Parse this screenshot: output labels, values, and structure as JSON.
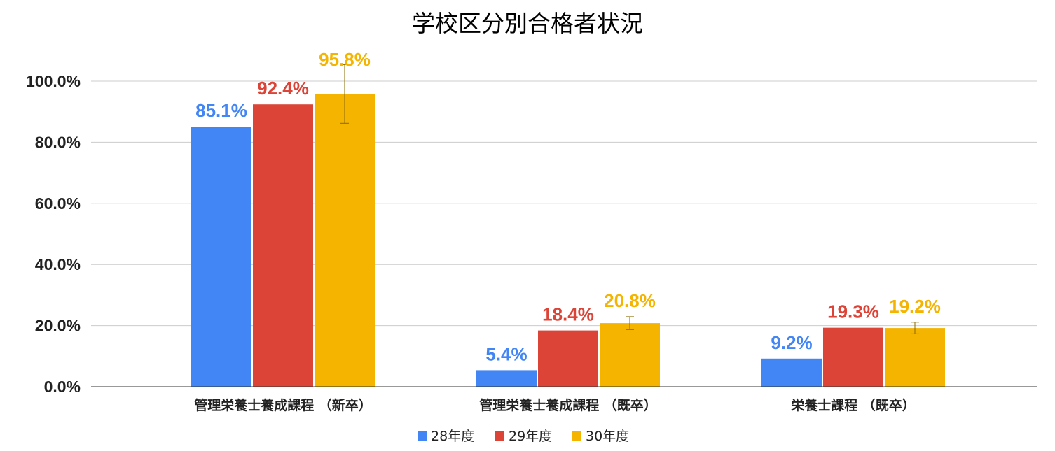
{
  "chart_data": {
    "type": "bar",
    "title": "学校区分別合格者状況",
    "xlabel": "",
    "ylabel": "",
    "categories": [
      "管理栄養士養成課程 （新卒）",
      "管理栄養士養成課程 （既卒）",
      "栄養士課程 （既卒）"
    ],
    "series": [
      {
        "name": "28年度",
        "color": "#4285f4",
        "values": [
          85.1,
          5.4,
          9.2
        ],
        "labels": [
          "85.1%",
          "5.4%",
          "9.2%"
        ],
        "error_bars": [
          null,
          null,
          null
        ]
      },
      {
        "name": "29年度",
        "color": "#db4437",
        "values": [
          92.4,
          18.4,
          19.3
        ],
        "labels": [
          "92.4%",
          "18.4%",
          "19.3%"
        ],
        "error_bars": [
          null,
          null,
          null
        ]
      },
      {
        "name": "30年度",
        "color": "#f4b400",
        "values": [
          95.8,
          20.8,
          19.2
        ],
        "labels": [
          "95.8%",
          "20.8%",
          "19.2%"
        ],
        "error_bars": [
          [
            86.2,
            105.4
          ],
          [
            18.7,
            22.9
          ],
          [
            17.3,
            21.1
          ]
        ]
      }
    ],
    "ylim": [
      0,
      100
    ],
    "yticks": [
      "0.0%",
      "20.0%",
      "40.0%",
      "60.0%",
      "80.0%",
      "100.0%"
    ],
    "grid": true,
    "legend_position": "bottom"
  }
}
